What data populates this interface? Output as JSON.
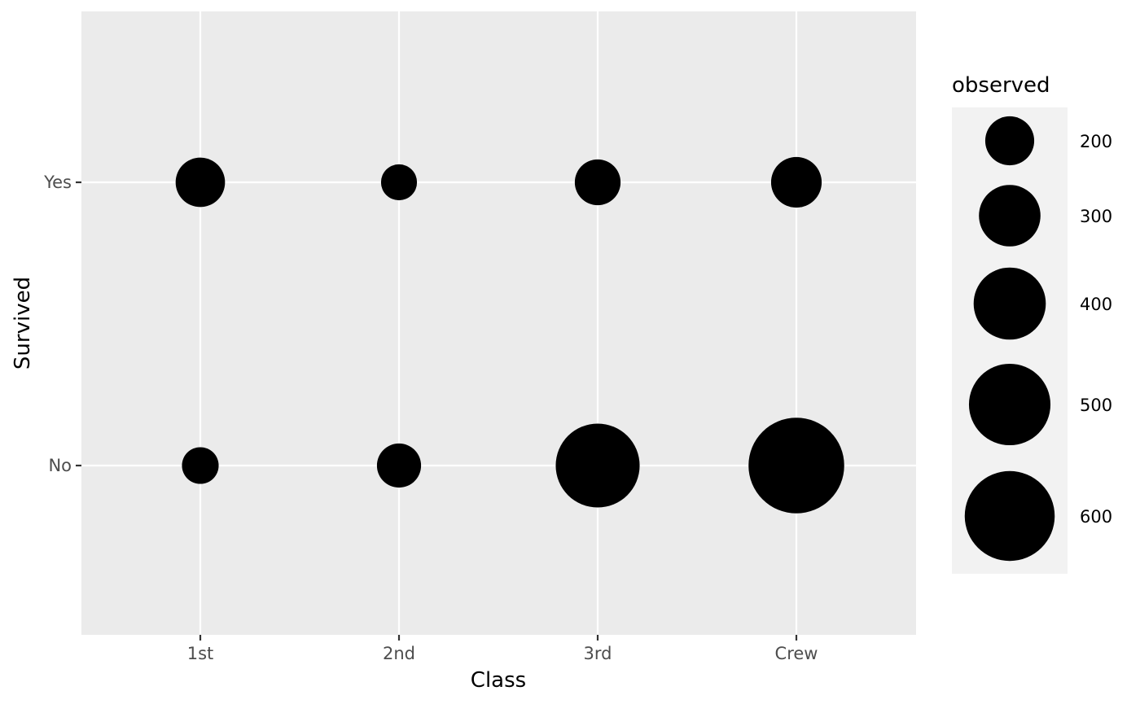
{
  "chart_data": {
    "type": "scatter",
    "xlabel": "Class",
    "ylabel": "Survived",
    "x_categories": [
      "1st",
      "2nd",
      "3rd",
      "Crew"
    ],
    "y_categories": [
      "No",
      "Yes"
    ],
    "size_legend": {
      "title": "observed",
      "breaks": [
        200,
        300,
        400,
        500,
        600
      ]
    },
    "points": [
      {
        "x": "1st",
        "y": "Yes",
        "observed": 203
      },
      {
        "x": "2nd",
        "y": "Yes",
        "observed": 118
      },
      {
        "x": "3rd",
        "y": "Yes",
        "observed": 178
      },
      {
        "x": "Crew",
        "y": "Yes",
        "observed": 212
      },
      {
        "x": "1st",
        "y": "No",
        "observed": 122
      },
      {
        "x": "2nd",
        "y": "No",
        "observed": 167
      },
      {
        "x": "3rd",
        "y": "No",
        "observed": 528
      },
      {
        "x": "Crew",
        "y": "No",
        "observed": 673
      }
    ],
    "grid": true,
    "legend_position": "right",
    "colors": {
      "panel": "#ebebeb",
      "legend_key": "#f2f2f2",
      "gridline": "#ffffff",
      "point": "#000000"
    }
  }
}
